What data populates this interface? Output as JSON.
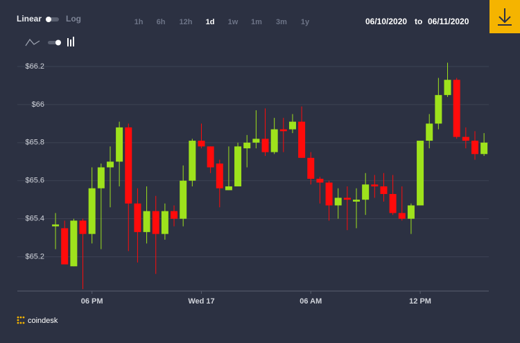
{
  "toolbar": {
    "scale_linear": "Linear",
    "scale_log": "Log",
    "ranges": [
      "1h",
      "6h",
      "12h",
      "1d",
      "1w",
      "1m",
      "3m",
      "1y"
    ],
    "date_from": "06/10/2020",
    "date_separator": "to",
    "date_to": "06/11/2020"
  },
  "brand": "coindesk",
  "chart_data": {
    "type": "candlestick",
    "categories": [
      null,
      null,
      null,
      null,
      "06 PM",
      null,
      null,
      null,
      null,
      null,
      null,
      null,
      null,
      null,
      null,
      null,
      "Wed 17",
      null,
      null,
      null,
      null,
      null,
      null,
      null,
      null,
      null,
      null,
      null,
      "06 AM",
      null,
      null,
      null,
      null,
      null,
      null,
      null,
      null,
      null,
      null,
      null,
      "12 PM",
      null,
      null,
      null,
      null,
      null,
      null,
      null
    ],
    "open": [
      65.36,
      65.35,
      65.15,
      65.39,
      65.32,
      65.56,
      65.67,
      65.7,
      65.88,
      65.48,
      65.33,
      65.44,
      65.32,
      65.44,
      65.4,
      65.6,
      65.81,
      65.78,
      65.69,
      65.55,
      65.57,
      65.77,
      65.8,
      65.82,
      65.75,
      65.87,
      65.87,
      65.91,
      65.72,
      65.61,
      65.59,
      65.47,
      65.51,
      65.49,
      65.5,
      65.58,
      65.57,
      65.53,
      65.43,
      65.4,
      65.47,
      65.81,
      65.9,
      66.05,
      66.13,
      65.83,
      65.81,
      65.74
    ],
    "high": [
      65.43,
      65.39,
      65.4,
      65.4,
      65.67,
      65.69,
      65.78,
      65.91,
      65.9,
      65.56,
      65.57,
      65.52,
      65.48,
      65.47,
      65.68,
      65.82,
      65.9,
      65.78,
      65.71,
      65.78,
      65.8,
      65.84,
      65.97,
      65.98,
      65.93,
      65.93,
      65.95,
      65.99,
      65.75,
      65.62,
      65.6,
      65.56,
      65.57,
      65.56,
      65.64,
      65.63,
      65.64,
      65.63,
      65.57,
      65.48,
      65.81,
      65.95,
      66.14,
      66.22,
      66.14,
      65.88,
      65.86,
      65.85
    ],
    "low": [
      65.24,
      65.16,
      65.15,
      65.03,
      65.27,
      65.24,
      65.46,
      65.57,
      65.23,
      65.17,
      65.27,
      65.11,
      65.29,
      65.36,
      65.36,
      65.57,
      65.77,
      65.64,
      65.46,
      65.55,
      65.57,
      65.67,
      65.77,
      65.73,
      65.74,
      65.75,
      65.85,
      65.72,
      65.58,
      65.48,
      65.39,
      65.4,
      65.34,
      65.35,
      65.42,
      65.51,
      65.49,
      65.42,
      65.39,
      65.32,
      65.47,
      65.77,
      65.87,
      66.04,
      65.82,
      65.77,
      65.71,
      65.73
    ],
    "close": [
      65.37,
      65.16,
      65.39,
      65.32,
      65.56,
      65.67,
      65.7,
      65.88,
      65.48,
      65.33,
      65.44,
      65.32,
      65.44,
      65.4,
      65.6,
      65.81,
      65.78,
      65.67,
      65.56,
      65.57,
      65.78,
      65.8,
      65.82,
      65.75,
      65.87,
      65.86,
      65.91,
      65.72,
      65.61,
      65.59,
      65.47,
      65.51,
      65.5,
      65.5,
      65.58,
      65.57,
      65.53,
      65.43,
      65.4,
      65.47,
      65.81,
      65.9,
      66.05,
      66.13,
      65.83,
      65.81,
      65.74,
      65.8
    ],
    "up_color": "#9ee21c",
    "down_color": "#ff0b0b",
    "ylim": [
      65.02,
      66.24
    ],
    "yticks": [
      {
        "value": 65.2,
        "label": "$65.2"
      },
      {
        "value": 65.4,
        "label": "$65.4"
      },
      {
        "value": 65.6,
        "label": "$65.6"
      },
      {
        "value": 65.8,
        "label": "$65.8"
      },
      {
        "value": 66,
        "label": "$66"
      },
      {
        "value": 66.2,
        "label": "$66.2"
      }
    ],
    "grid": true
  }
}
